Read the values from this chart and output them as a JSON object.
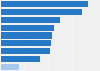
{
  "values": [
    91,
    84,
    62,
    55,
    53,
    52,
    51,
    41,
    19
  ],
  "bar_color": "#2878c8",
  "last_bar_color": "#a8c8ee",
  "background_color": "#f0f0f0",
  "xlim": [
    0,
    100
  ],
  "figsize": [
    1.0,
    0.71
  ],
  "dpi": 100
}
